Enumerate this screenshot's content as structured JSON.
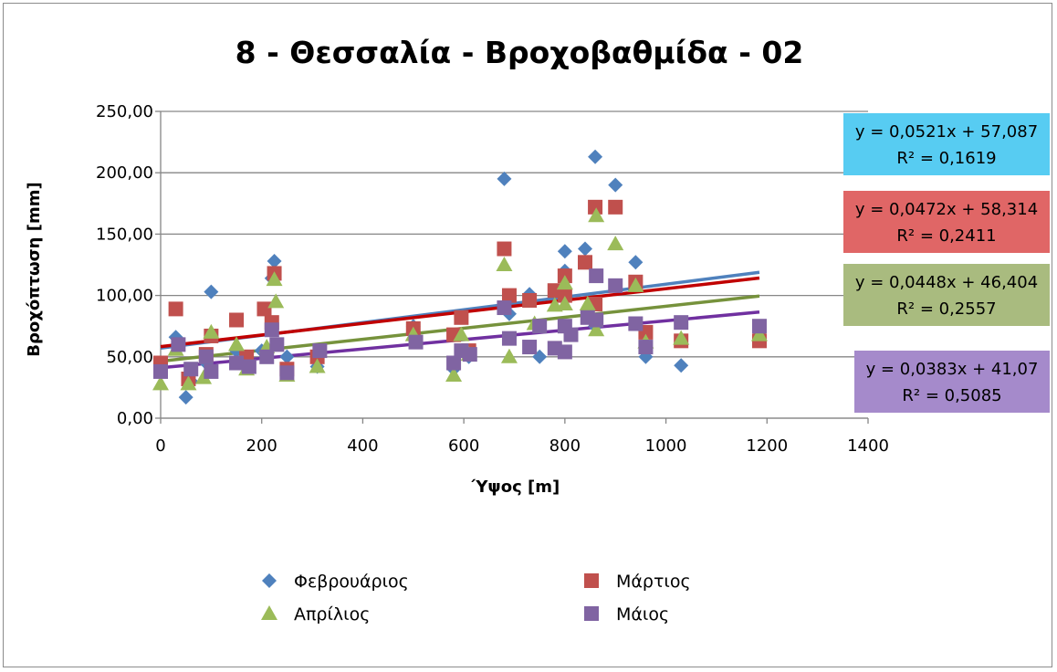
{
  "chart_data": {
    "type": "scatter",
    "title": "8 - Θεσσαλία - Βροχοβαθμίδα - 02",
    "xlabel": "Ύψος [m]",
    "ylabel": "Βροχόπτωση [mm]",
    "xlim": [
      0,
      1400
    ],
    "ylim": [
      0,
      250
    ],
    "x_ticks": [
      "0",
      "200",
      "400",
      "600",
      "800",
      "1000",
      "1200",
      "1400"
    ],
    "y_ticks": [
      "0,00",
      "50,00",
      "100,00",
      "150,00",
      "200,00",
      "250,00"
    ],
    "grid": "horizontal",
    "legend_position": "bottom",
    "series": [
      {
        "name": "Φεβρουάριος",
        "color": "#4F81BD",
        "marker": "diamond",
        "points": [
          [
            0,
            42
          ],
          [
            30,
            66
          ],
          [
            50,
            17
          ],
          [
            60,
            30
          ],
          [
            90,
            45
          ],
          [
            100,
            103
          ],
          [
            150,
            55
          ],
          [
            170,
            42
          ],
          [
            200,
            55
          ],
          [
            220,
            114
          ],
          [
            225,
            128
          ],
          [
            250,
            50
          ],
          [
            310,
            42
          ],
          [
            500,
            75
          ],
          [
            580,
            40
          ],
          [
            595,
            55
          ],
          [
            610,
            50
          ],
          [
            680,
            195
          ],
          [
            690,
            85
          ],
          [
            730,
            101
          ],
          [
            750,
            50
          ],
          [
            800,
            136
          ],
          [
            800,
            120
          ],
          [
            840,
            138
          ],
          [
            860,
            213
          ],
          [
            860,
            75
          ],
          [
            900,
            190
          ],
          [
            940,
            127
          ],
          [
            960,
            50
          ],
          [
            1030,
            43
          ],
          [
            1185,
            70
          ]
        ],
        "trendline": {
          "slope": 0.0521,
          "intercept": 57.087,
          "color": "#4F81BD",
          "equation": "y = 0,0521x + 57,087",
          "r2": "R² = 0,1619",
          "box_color": "#57CCF2"
        }
      },
      {
        "name": "Μάρτιος",
        "color": "#C0504D",
        "marker": "square",
        "points": [
          [
            0,
            45
          ],
          [
            30,
            89
          ],
          [
            55,
            32
          ],
          [
            90,
            52
          ],
          [
            100,
            67
          ],
          [
            150,
            80
          ],
          [
            170,
            50
          ],
          [
            205,
            89
          ],
          [
            220,
            78
          ],
          [
            225,
            118
          ],
          [
            250,
            40
          ],
          [
            310,
            50
          ],
          [
            500,
            73
          ],
          [
            580,
            68
          ],
          [
            595,
            82
          ],
          [
            610,
            55
          ],
          [
            680,
            138
          ],
          [
            690,
            100
          ],
          [
            730,
            96
          ],
          [
            780,
            104
          ],
          [
            800,
            116
          ],
          [
            800,
            100
          ],
          [
            840,
            127
          ],
          [
            860,
            172
          ],
          [
            860,
            93
          ],
          [
            900,
            172
          ],
          [
            940,
            111
          ],
          [
            960,
            70
          ],
          [
            1030,
            63
          ],
          [
            1185,
            63
          ]
        ],
        "trendline": {
          "slope": 0.0472,
          "intercept": 58.314,
          "color": "#C00000",
          "equation": "y = 0,0472x + 58,314",
          "r2": "R² = 0,2411",
          "box_color": "#E06666"
        }
      },
      {
        "name": "Απρίλιος",
        "color": "#9BBB59",
        "marker": "triangle",
        "points": [
          [
            0,
            28
          ],
          [
            30,
            56
          ],
          [
            55,
            28
          ],
          [
            85,
            33
          ],
          [
            100,
            70
          ],
          [
            150,
            60
          ],
          [
            170,
            40
          ],
          [
            210,
            58
          ],
          [
            225,
            113
          ],
          [
            228,
            95
          ],
          [
            250,
            35
          ],
          [
            310,
            42
          ],
          [
            500,
            68
          ],
          [
            580,
            35
          ],
          [
            595,
            68
          ],
          [
            610,
            52
          ],
          [
            680,
            125
          ],
          [
            690,
            50
          ],
          [
            740,
            77
          ],
          [
            780,
            92
          ],
          [
            800,
            110
          ],
          [
            800,
            93
          ],
          [
            845,
            93
          ],
          [
            862,
            165
          ],
          [
            862,
            72
          ],
          [
            900,
            142
          ],
          [
            940,
            108
          ],
          [
            960,
            62
          ],
          [
            1030,
            65
          ],
          [
            1185,
            68
          ]
        ],
        "trendline": {
          "slope": 0.0448,
          "intercept": 46.404,
          "color": "#76923C",
          "equation": "y = 0,0448x + 46,404",
          "r2": "R² = 0,2557",
          "box_color": "#A9BB7F"
        }
      },
      {
        "name": "Μάιος",
        "color": "#8064A2",
        "marker": "square",
        "points": [
          [
            0,
            38
          ],
          [
            35,
            60
          ],
          [
            60,
            40
          ],
          [
            90,
            50
          ],
          [
            100,
            38
          ],
          [
            150,
            45
          ],
          [
            175,
            42
          ],
          [
            210,
            50
          ],
          [
            220,
            72
          ],
          [
            230,
            60
          ],
          [
            250,
            37
          ],
          [
            315,
            55
          ],
          [
            505,
            62
          ],
          [
            580,
            45
          ],
          [
            595,
            55
          ],
          [
            612,
            52
          ],
          [
            680,
            90
          ],
          [
            690,
            65
          ],
          [
            730,
            58
          ],
          [
            750,
            75
          ],
          [
            780,
            57
          ],
          [
            800,
            54
          ],
          [
            800,
            75
          ],
          [
            812,
            68
          ],
          [
            845,
            82
          ],
          [
            862,
            116
          ],
          [
            862,
            80
          ],
          [
            900,
            108
          ],
          [
            940,
            77
          ],
          [
            960,
            58
          ],
          [
            1030,
            78
          ],
          [
            1185,
            75
          ]
        ],
        "trendline": {
          "slope": 0.0383,
          "intercept": 41.07,
          "color": "#7030A0",
          "equation": "y = 0,0383x + 41,07",
          "r2": "R² = 0,5085",
          "box_color": "#A58ACB"
        }
      }
    ]
  }
}
